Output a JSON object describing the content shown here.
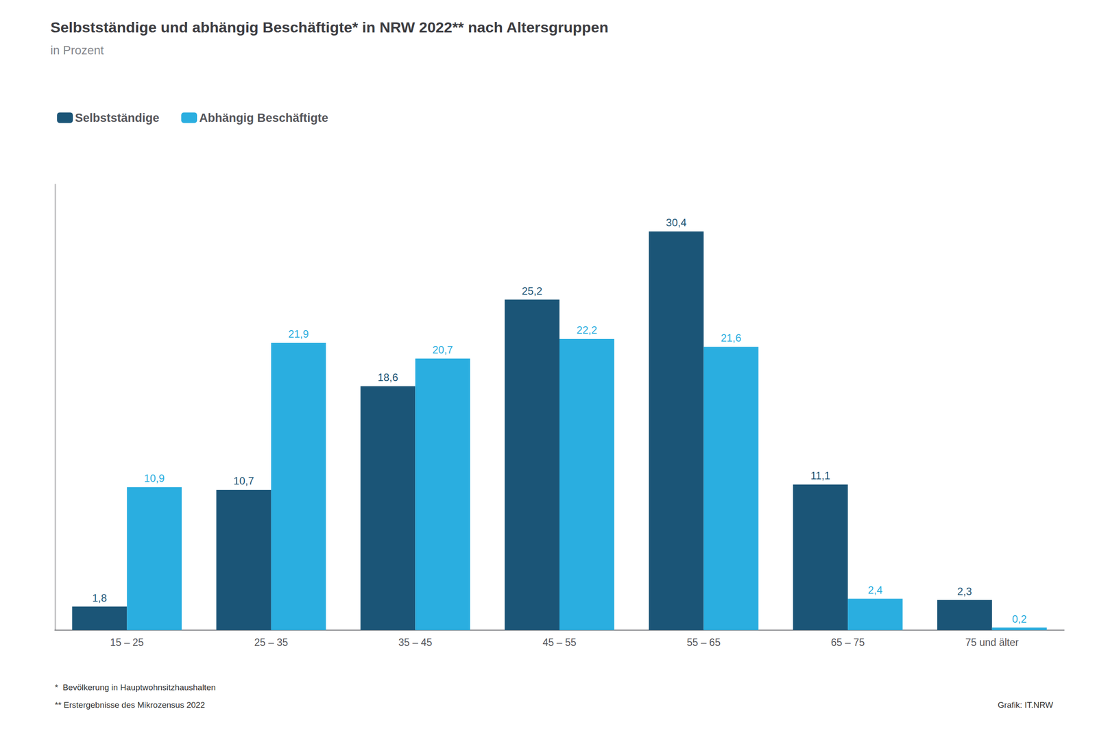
{
  "chart_data": {
    "type": "bar",
    "title": "Selbstständige und abhängig Beschäftigte* in NRW 2022** nach Altersgruppen",
    "subtitle": "in Prozent",
    "categories": [
      "15 – 25",
      "25 – 35",
      "35 – 45",
      "45 – 55",
      "55 – 65",
      "65 – 75",
      "75 und älter"
    ],
    "series": [
      {
        "name": "Selbstständige",
        "color": "#1b5577",
        "values": [
          1.8,
          10.7,
          18.6,
          25.2,
          30.4,
          11.1,
          2.3
        ],
        "value_labels": [
          "1,8",
          "10,7",
          "18,6",
          "25,2",
          "30,4",
          "11,1",
          "2,3"
        ]
      },
      {
        "name": "Abhängig Beschäftigte",
        "color": "#2aaee0",
        "values": [
          10.9,
          21.9,
          20.7,
          22.2,
          21.6,
          2.4,
          0.2
        ],
        "value_labels": [
          "10,9",
          "21,9",
          "20,7",
          "22,2",
          "21,6",
          "2,4",
          "0,2"
        ]
      }
    ],
    "ylim": [
      0,
      34
    ],
    "grid": false,
    "legend": "upper left",
    "data_labels": true,
    "tick_labels": "x",
    "annotations": [
      "*  Bevölkerung in Hauptwohnsitzhaushalten",
      "** Erstergebnisse des Mikrozensus 2022",
      "Grafik: IT.NRW"
    ]
  }
}
